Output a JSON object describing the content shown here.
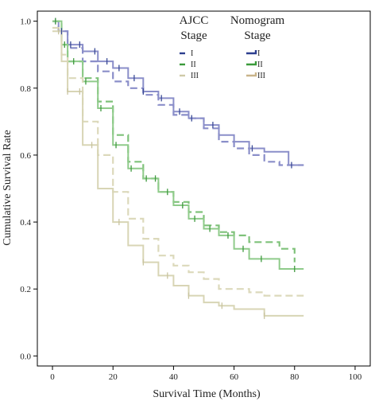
{
  "chart_data": {
    "type": "line",
    "title": "",
    "xlabel": "Survival Time (Months)",
    "ylabel": "Cumulative Survival Rate",
    "xlim": [
      -5,
      105
    ],
    "ylim": [
      -0.03,
      1.03
    ],
    "x_ticks": [
      0,
      20,
      40,
      60,
      80,
      100
    ],
    "y_ticks": [
      0.0,
      0.2,
      0.4,
      0.6,
      0.8,
      1.0
    ],
    "grid": false,
    "legend_placement": "top-right",
    "legend_groups": [
      {
        "title_line1": "AJCC",
        "title_line2": "Stage",
        "line_style": "dashed",
        "labels": [
          "I",
          "II",
          "III"
        ]
      },
      {
        "title_line1": "Nomogram",
        "title_line2": "Stage",
        "line_style": "solid",
        "labels": [
          "I",
          "II",
          "III"
        ]
      }
    ],
    "colors": {
      "ajcc": {
        "I": "#8a8ec9",
        "II": "#7fc27a",
        "III": "#dcd9bb"
      },
      "nomogram": {
        "I": "#8a8ec9",
        "II": "#8fcb8a",
        "III": "#d8d5b5"
      },
      "legend_ajcc": {
        "I": "#2d3f8f",
        "II": "#3a9a3a",
        "III": "#cfcaa8"
      },
      "legend_nomogram": {
        "I": "#2d3f8f",
        "II": "#3a9a3a",
        "III": "#c9b48a"
      }
    },
    "series": [
      {
        "group": "ajcc",
        "stage": "I",
        "style": "dashed",
        "x": [
          0,
          2,
          5,
          10,
          15,
          20,
          25,
          30,
          35,
          40,
          45,
          50,
          55,
          60,
          65,
          70,
          75,
          80,
          83
        ],
        "y": [
          1.0,
          0.97,
          0.92,
          0.88,
          0.85,
          0.82,
          0.8,
          0.78,
          0.75,
          0.72,
          0.71,
          0.68,
          0.64,
          0.62,
          0.6,
          0.58,
          0.57,
          0.57,
          0.57
        ]
      },
      {
        "group": "nomogram",
        "stage": "I",
        "style": "solid",
        "x": [
          0,
          2,
          5,
          10,
          15,
          20,
          25,
          30,
          35,
          40,
          45,
          50,
          55,
          60,
          65,
          70,
          75,
          78,
          80,
          83
        ],
        "y": [
          1.0,
          0.97,
          0.93,
          0.91,
          0.88,
          0.86,
          0.83,
          0.79,
          0.77,
          0.73,
          0.71,
          0.69,
          0.66,
          0.64,
          0.62,
          0.61,
          0.61,
          0.57,
          0.57,
          0.57
        ]
      },
      {
        "group": "ajcc",
        "stage": "II",
        "style": "dashed",
        "x": [
          0,
          3,
          5,
          10,
          15,
          20,
          25,
          30,
          35,
          40,
          45,
          50,
          55,
          60,
          65,
          70,
          75,
          80
        ],
        "y": [
          1.0,
          0.93,
          0.88,
          0.83,
          0.76,
          0.66,
          0.58,
          0.53,
          0.49,
          0.46,
          0.43,
          0.39,
          0.37,
          0.36,
          0.34,
          0.34,
          0.32,
          0.28
        ]
      },
      {
        "group": "nomogram",
        "stage": "II",
        "style": "solid",
        "x": [
          0,
          3,
          5,
          10,
          15,
          20,
          25,
          30,
          35,
          40,
          45,
          50,
          55,
          60,
          65,
          70,
          75,
          80,
          83
        ],
        "y": [
          1.0,
          0.93,
          0.88,
          0.82,
          0.74,
          0.63,
          0.56,
          0.53,
          0.49,
          0.45,
          0.41,
          0.38,
          0.36,
          0.32,
          0.29,
          0.29,
          0.26,
          0.26,
          0.26
        ]
      },
      {
        "group": "ajcc",
        "stage": "III",
        "style": "dashed",
        "x": [
          0,
          3,
          5,
          10,
          15,
          20,
          25,
          30,
          35,
          40,
          45,
          50,
          55,
          60,
          65,
          70,
          75,
          80,
          83
        ],
        "y": [
          0.98,
          0.9,
          0.83,
          0.7,
          0.6,
          0.49,
          0.41,
          0.35,
          0.3,
          0.27,
          0.25,
          0.23,
          0.2,
          0.2,
          0.19,
          0.18,
          0.18,
          0.18,
          0.18
        ]
      },
      {
        "group": "nomogram",
        "stage": "III",
        "style": "solid",
        "x": [
          0,
          3,
          5,
          10,
          15,
          20,
          25,
          30,
          35,
          40,
          45,
          50,
          55,
          60,
          65,
          70,
          75,
          80,
          83
        ],
        "y": [
          0.97,
          0.88,
          0.79,
          0.63,
          0.5,
          0.4,
          0.33,
          0.28,
          0.24,
          0.21,
          0.18,
          0.16,
          0.15,
          0.14,
          0.14,
          0.12,
          0.12,
          0.12,
          0.12
        ]
      }
    ],
    "censor_marks": [
      {
        "group": "nomogram",
        "stage": "I",
        "x": [
          1,
          3,
          6,
          9,
          14,
          18,
          22,
          27,
          30,
          36,
          42,
          46,
          53,
          66,
          79
        ]
      },
      {
        "group": "nomogram",
        "stage": "II",
        "x": [
          1,
          4,
          7,
          11,
          16,
          21,
          26,
          31,
          34,
          38,
          43,
          47,
          52,
          58,
          63,
          69,
          80
        ]
      },
      {
        "group": "nomogram",
        "stage": "III",
        "x": [
          2,
          5,
          9,
          13,
          22,
          30,
          38,
          45,
          56,
          70
        ]
      }
    ]
  }
}
